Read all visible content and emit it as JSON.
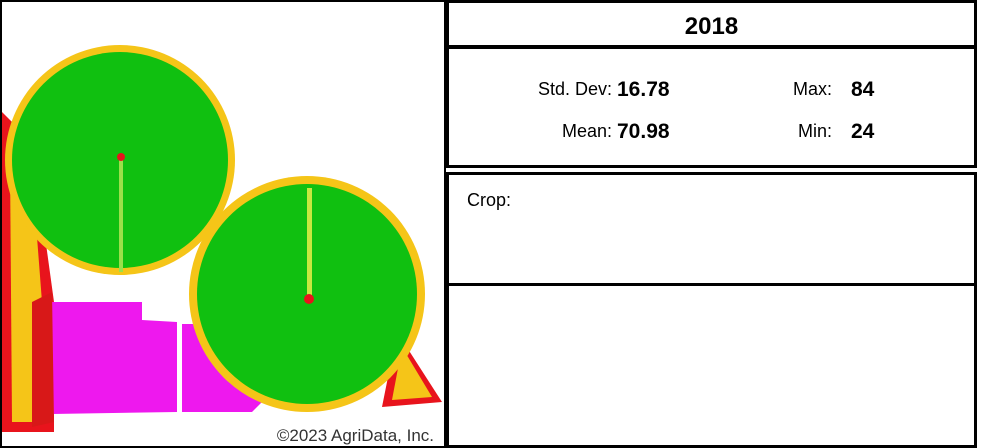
{
  "map": {
    "copyright": "©2023 AgriData, Inc."
  },
  "panel": {
    "title": "2018",
    "stats": [
      {
        "label": "Std. Dev:",
        "value": 16.78
      },
      {
        "label": "Max:",
        "value": 84
      },
      {
        "label": "Mean:",
        "value": 70.98
      },
      {
        "label": "Min:",
        "value": 24
      }
    ],
    "crop_label": "Crop:"
  }
}
